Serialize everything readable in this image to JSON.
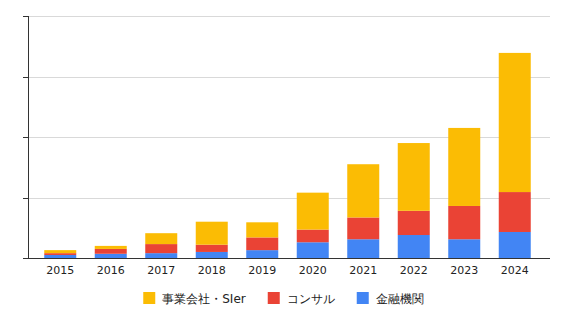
{
  "chart_data": {
    "type": "bar",
    "stacked": true,
    "categories": [
      "2015",
      "2016",
      "2017",
      "2018",
      "2019",
      "2020",
      "2021",
      "2022",
      "2023",
      "2024"
    ],
    "series": [
      {
        "name": "事業会社・SIer",
        "color": "#fbbc04",
        "values": [
          5,
          5,
          18,
          38,
          25,
          61,
          88,
          112,
          129,
          230
        ]
      },
      {
        "name": "コンサル",
        "color": "#ea4335",
        "values": [
          3,
          8,
          15,
          12,
          21,
          21,
          36,
          40,
          55,
          66
        ]
      },
      {
        "name": "金融機関",
        "color": "#4285f4",
        "values": [
          5,
          7,
          8,
          10,
          13,
          26,
          31,
          38,
          31,
          43
        ]
      }
    ],
    "ylim": [
      0,
      400
    ],
    "yticks": [
      0,
      100,
      200,
      300,
      400
    ],
    "grid": true,
    "tick_labels": "x",
    "legend": "bottom"
  }
}
